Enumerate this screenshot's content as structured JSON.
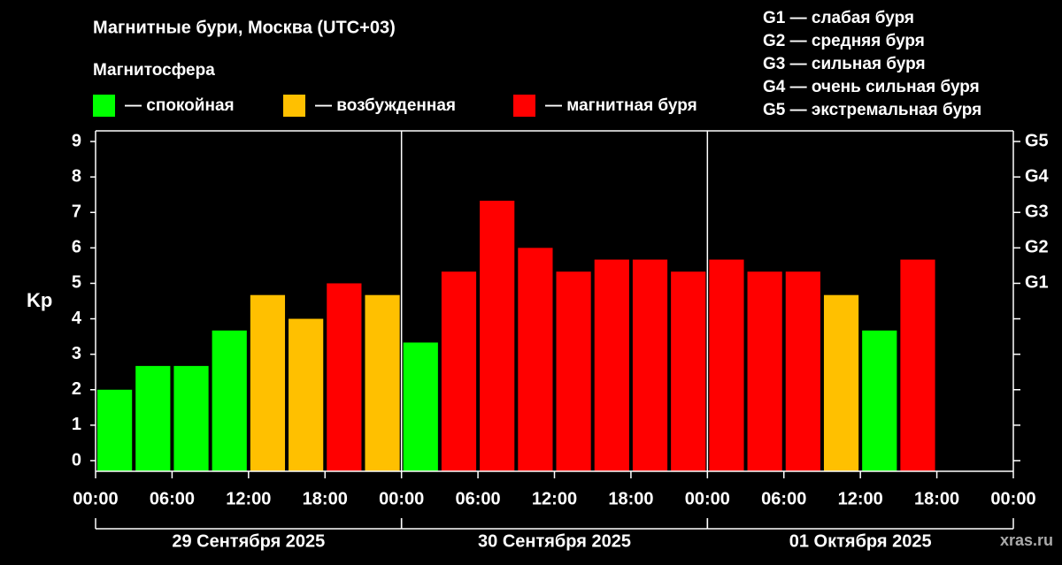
{
  "chart_data": {
    "type": "histogram",
    "title": "Магнитные бури, Москва (UTC+03)",
    "subtitle": "Магнитосфера",
    "legend": [
      {
        "label": "— спокойная",
        "color": "#00ff00"
      },
      {
        "label": "— возбужденная",
        "color": "#ffc000"
      },
      {
        "label": "— магнитная буря",
        "color": "#ff0000"
      }
    ],
    "storm_levels": [
      "G1 — слабая буря",
      "G2 — средняя буря",
      "G3 — сильная буря",
      "G4 — очень сильная буря",
      "G5 — экстремальная буря"
    ],
    "ylabel": "Kp",
    "watermark": "xras.ru",
    "bins": [
      0,
      3,
      6,
      9,
      12,
      15,
      18,
      21,
      24,
      27,
      30,
      33,
      36,
      39,
      42,
      45,
      48,
      51,
      54,
      57,
      60,
      63,
      66
    ],
    "values": [
      2.0,
      2.67,
      2.67,
      3.67,
      4.67,
      4.0,
      5.0,
      4.67,
      3.33,
      5.33,
      7.33,
      6.0,
      5.33,
      5.67,
      5.67,
      5.33,
      5.67,
      5.33,
      5.33,
      4.67,
      3.67,
      5.67
    ],
    "colors": [
      "#00ff00",
      "#00ff00",
      "#00ff00",
      "#00ff00",
      "#ffc000",
      "#ffc000",
      "#ff0000",
      "#ffc000",
      "#00ff00",
      "#ff0000",
      "#ff0000",
      "#ff0000",
      "#ff0000",
      "#ff0000",
      "#ff0000",
      "#ff0000",
      "#ff0000",
      "#ff0000",
      "#ff0000",
      "#ffc000",
      "#00ff00",
      "#ff0000"
    ],
    "xlim": [
      0,
      72
    ],
    "xticks": [
      {
        "value": 0,
        "label": "00:00"
      },
      {
        "value": 6,
        "label": "06:00"
      },
      {
        "value": 12,
        "label": "12:00"
      },
      {
        "value": 18,
        "label": "18:00"
      },
      {
        "value": 24,
        "label": "00:00"
      },
      {
        "value": 30,
        "label": "06:00"
      },
      {
        "value": 36,
        "label": "12:00"
      },
      {
        "value": 42,
        "label": "18:00"
      },
      {
        "value": 48,
        "label": "00:00"
      },
      {
        "value": 54,
        "label": "06:00"
      },
      {
        "value": 60,
        "label": "12:00"
      },
      {
        "value": 66,
        "label": "18:00"
      },
      {
        "value": 72,
        "label": "00:00"
      }
    ],
    "days": [
      {
        "label": "29 Сентября 2025",
        "start": 0,
        "end": 24
      },
      {
        "label": "30 Сентября 2025",
        "start": 24,
        "end": 48
      },
      {
        "label": "01 Октября 2025",
        "start": 48,
        "end": 72
      }
    ],
    "ylim": [
      -0.3,
      9.3
    ],
    "yticks": [
      0,
      1,
      2,
      3,
      4,
      5,
      6,
      7,
      8,
      9
    ],
    "y2ticks": [
      {
        "value": 5,
        "label": "G1"
      },
      {
        "value": 6,
        "label": "G2"
      },
      {
        "value": 7,
        "label": "G3"
      },
      {
        "value": 8,
        "label": "G4"
      },
      {
        "value": 9,
        "label": "G5"
      }
    ]
  }
}
